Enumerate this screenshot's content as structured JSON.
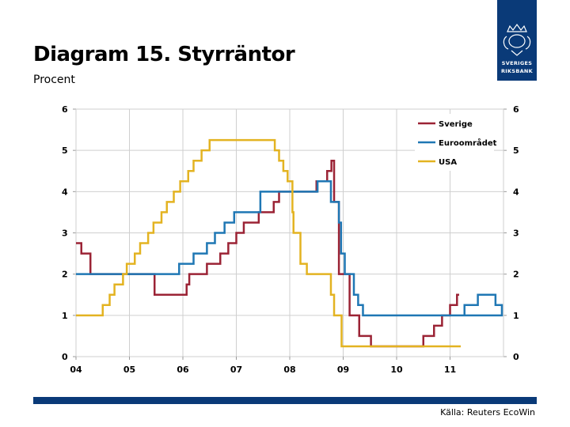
{
  "header": {
    "title": "Diagram 15. Styrräntor",
    "subtitle": "Procent"
  },
  "logo": {
    "line1": "SVERIGES",
    "line2": "RIKSBANK"
  },
  "footer": {
    "source": "Källa: Reuters EcoWin"
  },
  "colors": {
    "sverige": "#9b2335",
    "euro": "#1f77b4",
    "usa": "#e3b321",
    "grid": "#cfcfcf",
    "brand": "#0a3a78"
  },
  "chart_data": {
    "type": "line",
    "title": "Diagram 15. Styrräntor",
    "ylabel": "Procent",
    "xlabel": "",
    "xlim": [
      2004,
      2012
    ],
    "ylim": [
      0,
      6
    ],
    "x_ticks": [
      2004,
      2005,
      2006,
      2007,
      2008,
      2009,
      2010,
      2011
    ],
    "x_tick_labels": [
      "04",
      "05",
      "06",
      "07",
      "08",
      "09",
      "10",
      "11"
    ],
    "y_ticks": [
      0,
      1,
      2,
      3,
      4,
      5,
      6
    ],
    "y_tick_labels": [
      "0",
      "1",
      "2",
      "3",
      "4",
      "5",
      "6"
    ],
    "grid": true,
    "legend_position": "top-right",
    "step": true,
    "series": [
      {
        "name": "Sverige",
        "color": "#9b2335",
        "points": [
          [
            2004.0,
            2.75
          ],
          [
            2004.1,
            2.5
          ],
          [
            2004.27,
            2.0
          ],
          [
            2005.47,
            1.5
          ],
          [
            2006.07,
            1.75
          ],
          [
            2006.12,
            2.0
          ],
          [
            2006.45,
            2.25
          ],
          [
            2006.7,
            2.5
          ],
          [
            2006.85,
            2.75
          ],
          [
            2007.0,
            3.0
          ],
          [
            2007.14,
            3.25
          ],
          [
            2007.42,
            3.5
          ],
          [
            2007.7,
            3.75
          ],
          [
            2007.8,
            4.0
          ],
          [
            2008.5,
            4.25
          ],
          [
            2008.7,
            4.5
          ],
          [
            2008.78,
            4.75
          ],
          [
            2008.83,
            3.75
          ],
          [
            2008.92,
            2.0
          ],
          [
            2009.12,
            1.0
          ],
          [
            2009.3,
            0.5
          ],
          [
            2009.52,
            0.25
          ],
          [
            2010.5,
            0.5
          ],
          [
            2010.7,
            0.75
          ],
          [
            2010.85,
            1.0
          ],
          [
            2011.0,
            1.25
          ],
          [
            2011.13,
            1.5
          ],
          [
            2011.17,
            1.5
          ]
        ]
      },
      {
        "name": "Euroområdet",
        "color": "#1f77b4",
        "points": [
          [
            2004.0,
            2.0
          ],
          [
            2005.93,
            2.25
          ],
          [
            2006.2,
            2.5
          ],
          [
            2006.45,
            2.75
          ],
          [
            2006.6,
            3.0
          ],
          [
            2006.78,
            3.25
          ],
          [
            2006.96,
            3.5
          ],
          [
            2007.45,
            3.75
          ],
          [
            2007.45,
            4.0
          ],
          [
            2008.52,
            4.25
          ],
          [
            2008.77,
            3.75
          ],
          [
            2008.92,
            3.25
          ],
          [
            2008.96,
            2.5
          ],
          [
            2009.03,
            2.0
          ],
          [
            2009.2,
            1.5
          ],
          [
            2009.28,
            1.25
          ],
          [
            2009.37,
            1.0
          ],
          [
            2011.27,
            1.25
          ],
          [
            2011.52,
            1.5
          ],
          [
            2011.85,
            1.25
          ],
          [
            2011.97,
            1.0
          ],
          [
            2011.2,
            1.0
          ]
        ]
      },
      {
        "name": "USA",
        "color": "#e3b321",
        "points": [
          [
            2004.0,
            1.0
          ],
          [
            2004.5,
            1.25
          ],
          [
            2004.63,
            1.5
          ],
          [
            2004.72,
            1.75
          ],
          [
            2004.88,
            2.0
          ],
          [
            2004.95,
            2.25
          ],
          [
            2005.1,
            2.5
          ],
          [
            2005.2,
            2.75
          ],
          [
            2005.35,
            3.0
          ],
          [
            2005.45,
            3.25
          ],
          [
            2005.6,
            3.5
          ],
          [
            2005.7,
            3.75
          ],
          [
            2005.83,
            4.0
          ],
          [
            2005.95,
            4.25
          ],
          [
            2006.1,
            4.5
          ],
          [
            2006.2,
            4.75
          ],
          [
            2006.35,
            5.0
          ],
          [
            2006.5,
            5.25
          ],
          [
            2007.72,
            5.0
          ],
          [
            2007.8,
            4.75
          ],
          [
            2007.88,
            4.5
          ],
          [
            2007.96,
            4.25
          ],
          [
            2008.05,
            3.5
          ],
          [
            2008.07,
            3.0
          ],
          [
            2008.2,
            2.25
          ],
          [
            2008.32,
            2.0
          ],
          [
            2008.77,
            1.5
          ],
          [
            2008.83,
            1.0
          ],
          [
            2008.97,
            0.25
          ],
          [
            2011.2,
            0.25
          ]
        ]
      }
    ]
  }
}
